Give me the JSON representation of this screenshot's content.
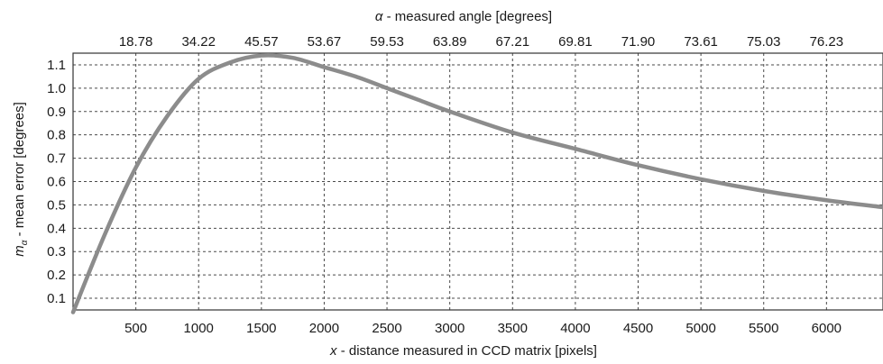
{
  "chart_data": {
    "type": "line",
    "title": "",
    "xlabel": {
      "italic_prefix": "x",
      "text": " - distance measured in CCD matrix [pixels]"
    },
    "ylabel": {
      "symbol": "m",
      "subscript": "α",
      "text": " - mean error [degrees]"
    },
    "top_xlabel": {
      "italic_prefix": "α",
      "text": " - measured angle [degrees]"
    },
    "xlim": [
      0,
      6450
    ],
    "ylim": [
      0.05,
      1.15
    ],
    "x_ticks": [
      500,
      1000,
      1500,
      2000,
      2500,
      3000,
      3500,
      4000,
      4500,
      5000,
      5500,
      6000
    ],
    "x_tick_labels": [
      "500",
      "1000",
      "1500",
      "2000",
      "2500",
      "3000",
      "3500",
      "4000",
      "4500",
      "5000",
      "5500",
      "6000"
    ],
    "top_tick_labels": [
      "18.78",
      "34.22",
      "45.57",
      "53.67",
      "59.53",
      "63.89",
      "67.21",
      "69.81",
      "71.90",
      "73.61",
      "75.03",
      "76.23"
    ],
    "y_ticks": [
      0.1,
      0.2,
      0.3,
      0.4,
      0.5,
      0.6,
      0.7,
      0.8,
      0.9,
      1.0,
      1.1
    ],
    "y_tick_labels": [
      "0.1",
      "0.2",
      "0.3",
      "0.4",
      "0.5",
      "0.6",
      "0.7",
      "0.8",
      "0.9",
      "1.0",
      "1.1"
    ],
    "grid": true,
    "line_color": "#8c8c8c",
    "series": [
      {
        "x": [
          0,
          250,
          500,
          750,
          1000,
          1250,
          1500,
          1750,
          2000,
          2250,
          2500,
          2750,
          3000,
          3500,
          4000,
          4500,
          5000,
          5500,
          6000,
          6450
        ],
        "values": [
          0.04,
          0.37,
          0.66,
          0.88,
          1.04,
          1.11,
          1.14,
          1.13,
          1.09,
          1.05,
          1.0,
          0.95,
          0.9,
          0.81,
          0.74,
          0.67,
          0.61,
          0.56,
          0.52,
          0.49
        ]
      }
    ]
  }
}
